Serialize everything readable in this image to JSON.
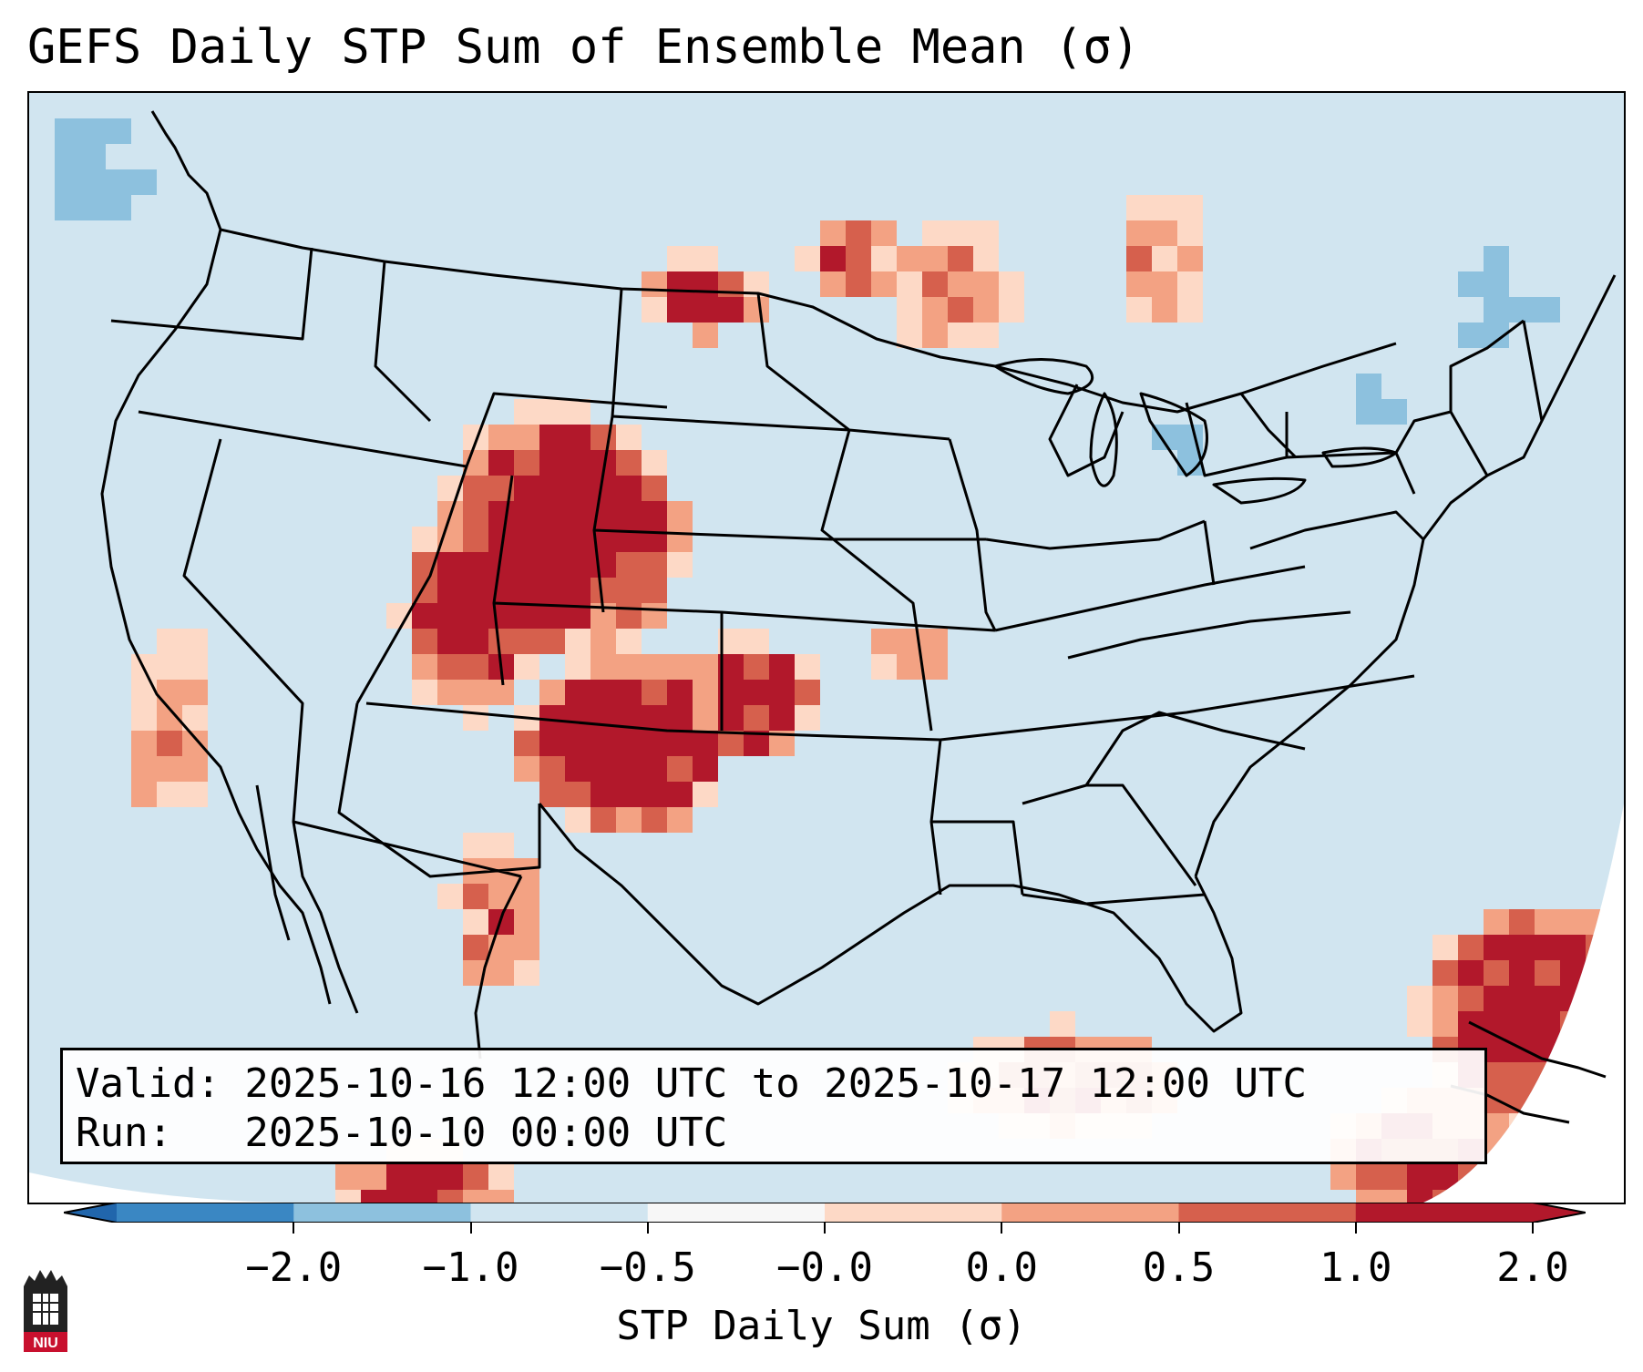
{
  "title": "GEFS Daily STP Sum of Ensemble Mean (σ)",
  "info": {
    "valid_line": "Valid: 2025-10-16 12:00 UTC to 2025-10-17 12:00 UTC",
    "run_line": "Run:   2025-10-10 00:00 UTC"
  },
  "colorbar": {
    "label": "STP Daily Sum (σ)",
    "ticks": [
      "−2.0",
      "−1.0",
      "−0.5",
      "−0.0",
      "0.0",
      "0.5",
      "1.0",
      "2.0"
    ],
    "colors": [
      "#3a87c3",
      "#8dc1de",
      "#d1e5f0",
      "#f7f7f7",
      "#fdd9c6",
      "#f3a283",
      "#d6604d",
      "#b2182b"
    ],
    "under_color": "#2166ac",
    "over_color": "#b2182b"
  },
  "map": {
    "background_color": "#d1e5f0",
    "outside_color": "#ffffff",
    "boundary_color": "#000000"
  },
  "logo": {
    "text": "NIU"
  }
}
